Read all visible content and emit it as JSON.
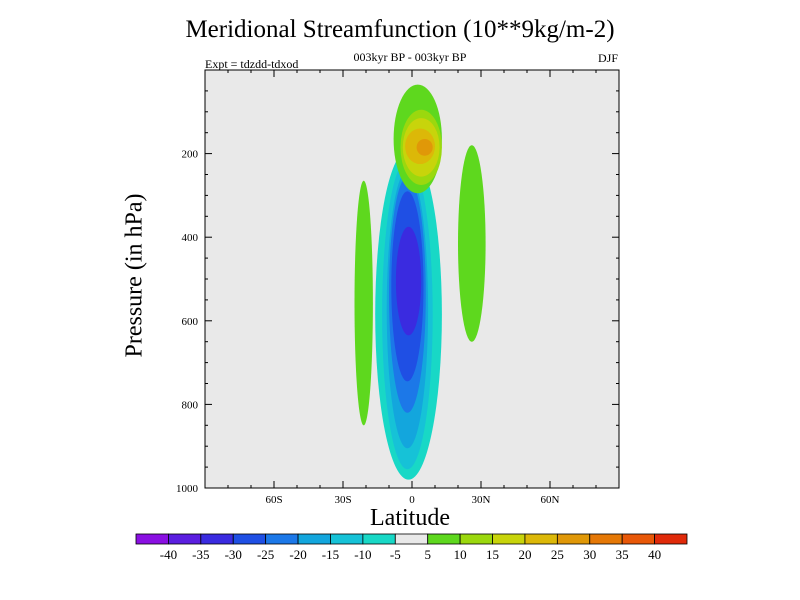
{
  "chart_data": {
    "type": "contour",
    "title": "Meridional Streamfunction (10**9kg/m-2)",
    "subtitle": "003kyr BP - 003kyr BP",
    "left_annotation": "Expt = tdzdd-tdxod",
    "right_annotation": "DJF",
    "xlabel": "Latitude",
    "ylabel": "Pressure (in hPa)",
    "xlim": [
      -90,
      90
    ],
    "ylim": [
      1000,
      0
    ],
    "x_ticks": [
      {
        "value": -60,
        "label": "60S"
      },
      {
        "value": -30,
        "label": "30S"
      },
      {
        "value": 0,
        "label": "0"
      },
      {
        "value": 30,
        "label": "30N"
      },
      {
        "value": 60,
        "label": "60N"
      }
    ],
    "y_ticks": [
      {
        "value": 200,
        "label": "200"
      },
      {
        "value": 400,
        "label": "400"
      },
      {
        "value": 600,
        "label": "600"
      },
      {
        "value": 800,
        "label": "800"
      },
      {
        "value": 1000,
        "label": "1000"
      }
    ],
    "colorbar": {
      "labels": [
        "-40",
        "-35",
        "-30",
        "-25",
        "-20",
        "-15",
        "-10",
        "-5",
        "5",
        "10",
        "15",
        "20",
        "25",
        "30",
        "35",
        "40"
      ],
      "colors": [
        "#8a10e2",
        "#5b1ee0",
        "#3a2be0",
        "#1f4fe4",
        "#1c78e8",
        "#13a6dd",
        "#16c2d7",
        "#18d8c6",
        "#e9e9e9",
        "#5ed81e",
        "#9bd80e",
        "#c8d40b",
        "#dcb808",
        "#e09808",
        "#e57806",
        "#e85808",
        "#e02a0a"
      ],
      "background_index": 8
    },
    "regions": [
      {
        "label": "-5",
        "level_index": 7,
        "lat_range": [
          -16,
          13
        ],
        "p_range": [
          190,
          980
        ]
      },
      {
        "label": "-10",
        "level_index": 6,
        "lat_range": [
          -13,
          9
        ],
        "p_range": [
          215,
          955
        ]
      },
      {
        "label": "-15",
        "level_index": 5,
        "lat_range": [
          -11,
          7
        ],
        "p_range": [
          240,
          905
        ]
      },
      {
        "label": "-20",
        "level_index": 4,
        "lat_range": [
          -10,
          6
        ],
        "p_range": [
          255,
          820
        ]
      },
      {
        "label": "-25",
        "level_index": 3,
        "lat_range": [
          -9,
          5
        ],
        "p_range": [
          290,
          745
        ]
      },
      {
        "label": "-30",
        "level_index": 2,
        "lat_range": [
          -7,
          4
        ],
        "p_range": [
          375,
          635
        ]
      },
      {
        "label": "5",
        "level_index": 9,
        "lat_range": [
          -25,
          -17
        ],
        "p_range": [
          265,
          850
        ]
      },
      {
        "label": "5",
        "level_index": 9,
        "lat_range": [
          20,
          32
        ],
        "p_range": [
          180,
          650
        ]
      },
      {
        "label": "5",
        "level_index": 9,
        "lat_range": [
          -8,
          13
        ],
        "p_range": [
          35,
          295
        ]
      },
      {
        "label": "10",
        "level_index": 10,
        "lat_range": [
          -5,
          13
        ],
        "p_range": [
          95,
          275
        ]
      },
      {
        "label": "15",
        "level_index": 11,
        "lat_range": [
          -4,
          12
        ],
        "p_range": [
          115,
          255
        ]
      },
      {
        "label": "20",
        "level_index": 12,
        "lat_range": [
          -3,
          10
        ],
        "p_range": [
          140,
          225
        ]
      },
      {
        "label": "25",
        "level_index": 13,
        "lat_range": [
          2,
          9
        ],
        "p_range": [
          165,
          205
        ]
      }
    ]
  }
}
